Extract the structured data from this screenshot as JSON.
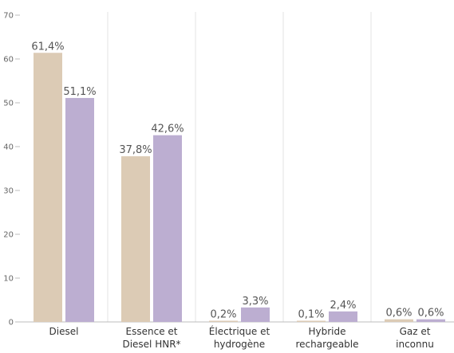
{
  "chart_data": {
    "type": "bar",
    "categories": [
      [
        "Diesel"
      ],
      [
        "Essence et",
        "Diesel HNR*"
      ],
      [
        "Électrique et",
        "hydrogène"
      ],
      [
        "Hybride",
        "rechargeable"
      ],
      [
        "Gaz et",
        "inconnu"
      ]
    ],
    "series": [
      {
        "color": "#dccbb5",
        "values": [
          61.4,
          37.8,
          0.2,
          0.1,
          0.6
        ],
        "labels": [
          "61,4%",
          "37,8%",
          "0,2%",
          "0,1%",
          "0,6%"
        ]
      },
      {
        "color": "#bcaed1",
        "values": [
          51.1,
          42.6,
          3.3,
          2.4,
          0.6
        ],
        "labels": [
          "51,1%",
          "42,6%",
          "3,3%",
          "2,4%",
          "0,6%"
        ]
      }
    ],
    "yticks": [
      0,
      10,
      20,
      30,
      40,
      50,
      60,
      70
    ],
    "ylim": [
      0,
      70
    ],
    "grid": "vertical separators between categories",
    "legend": "none"
  }
}
